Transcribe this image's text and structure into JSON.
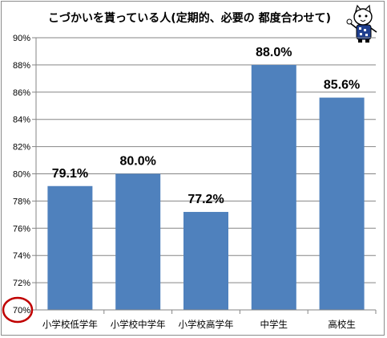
{
  "chart_data": {
    "type": "bar",
    "title": "こづかいを貰っている人(定期的、必要の 都度合わせて)",
    "categories": [
      "小学校低学年",
      "小学校中学年",
      "小学校高学年",
      "中学生",
      "高校生"
    ],
    "values": [
      79.1,
      80.0,
      77.2,
      88.0,
      85.6
    ],
    "data_labels": [
      "79.1%",
      "80.0%",
      "77.2%",
      "88.0%",
      "85.6%"
    ],
    "ylim": [
      70,
      90
    ],
    "y_ticks": [
      "70%",
      "72%",
      "74%",
      "76%",
      "78%",
      "80%",
      "82%",
      "84%",
      "86%",
      "88%",
      "90%"
    ],
    "grid": true,
    "bar_color": "#4f81bd",
    "highlight_circle_color": "#c00000",
    "mascot": "cat-mascot-icon"
  }
}
